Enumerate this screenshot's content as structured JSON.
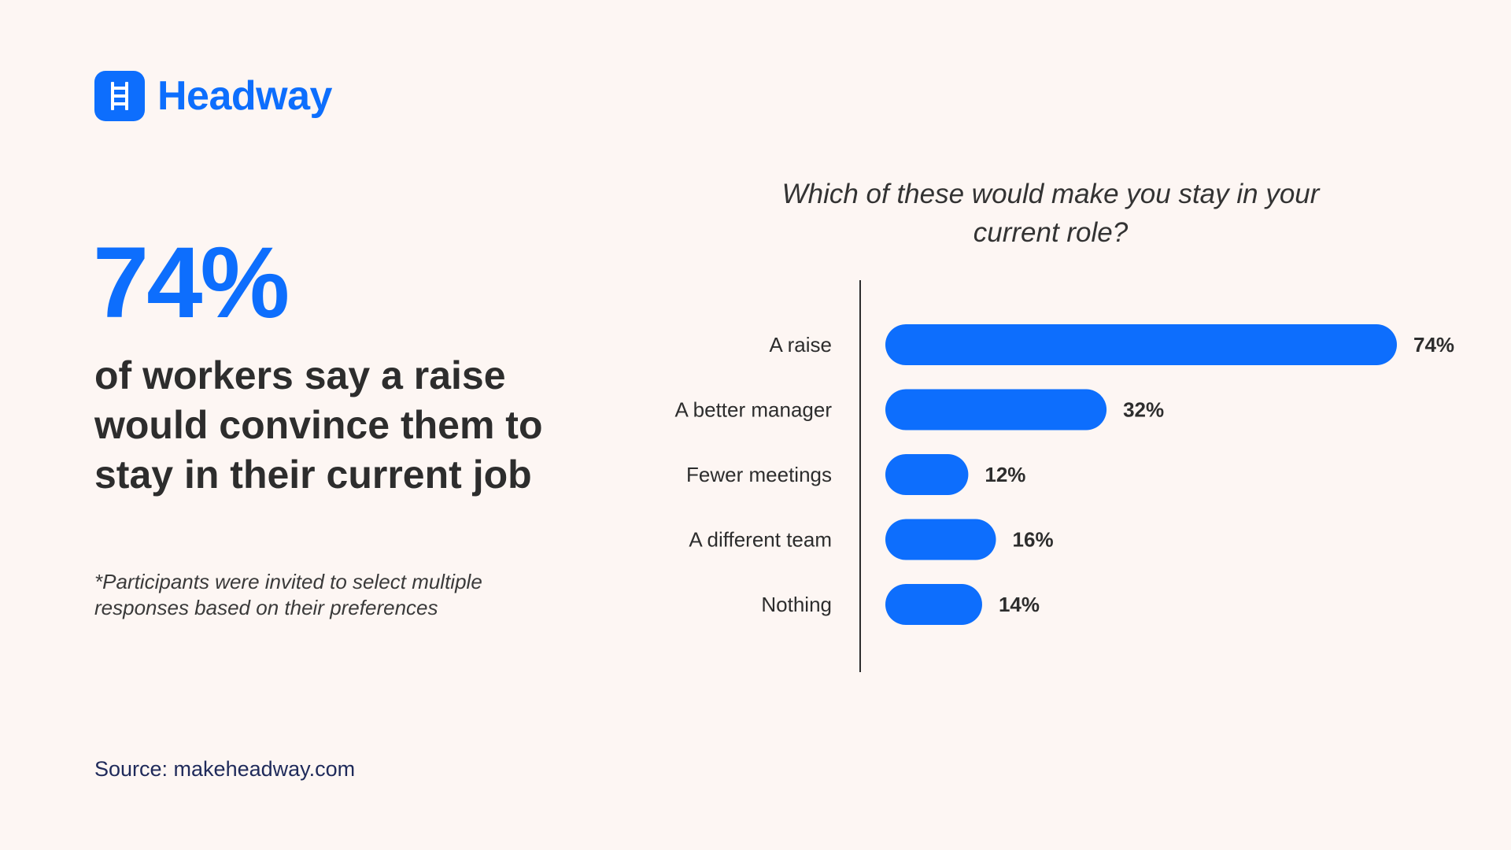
{
  "brand": {
    "name": "Headway",
    "accent_color": "#0d6efd",
    "icon": "ladder-icon"
  },
  "highlight": {
    "stat": "74%",
    "headline": "of workers say a raise would convince them to stay in their current job",
    "footnote": "*Participants were invited to select multiple responses based on their preferences"
  },
  "source": "Source: makeheadway.com",
  "chart_data": {
    "type": "bar",
    "orientation": "horizontal",
    "title": "Which of these would make you stay in your current role?",
    "categories": [
      "A raise",
      "A better manager",
      "Fewer meetings",
      "A different team",
      "Nothing"
    ],
    "values": [
      74,
      32,
      12,
      16,
      14
    ],
    "value_labels": [
      "74%",
      "32%",
      "12%",
      "16%",
      "14%"
    ],
    "unit": "%",
    "xlim": [
      0,
      74
    ],
    "grid": false,
    "bar_color": "#0d6efd"
  }
}
